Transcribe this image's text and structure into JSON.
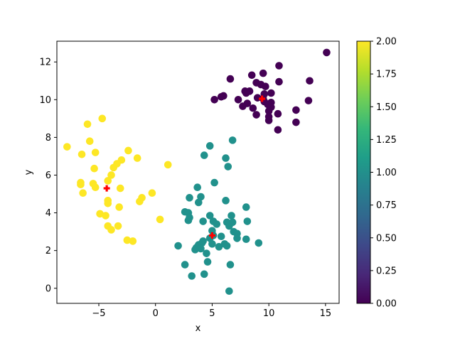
{
  "chart_data": {
    "type": "scatter",
    "xlabel": "x",
    "ylabel": "y",
    "xlim": [
      -8.7,
      16.2
    ],
    "ylim": [
      -0.8,
      13.1
    ],
    "xticks": [
      -5,
      0,
      5,
      10,
      15
    ],
    "yticks": [
      0,
      2,
      4,
      6,
      8,
      10,
      12
    ],
    "colorbar": {
      "colormap": "viridis",
      "range": [
        0,
        2
      ],
      "ticks": [
        "0.00",
        "0.25",
        "0.50",
        "0.75",
        "1.00",
        "1.25",
        "1.50",
        "1.75",
        "2.00"
      ],
      "stops": [
        "#440154",
        "#482878",
        "#3e4989",
        "#31688e",
        "#26828e",
        "#1f9e89",
        "#35b779",
        "#6ece58",
        "#b5de2b",
        "#fde725"
      ]
    },
    "cluster_colors": {
      "0": "#440154",
      "1": "#21918c",
      "2": "#fde725"
    },
    "centroid_color": "#ff0000",
    "points": [
      {
        "x": 15.1,
        "y": 12.5,
        "c": 0
      },
      {
        "x": 10.9,
        "y": 11.8,
        "c": 0
      },
      {
        "x": 8.5,
        "y": 11.3,
        "c": 0
      },
      {
        "x": 9.5,
        "y": 11.4,
        "c": 0
      },
      {
        "x": 6.6,
        "y": 11.1,
        "c": 0
      },
      {
        "x": 13.6,
        "y": 11.0,
        "c": 0
      },
      {
        "x": 8.9,
        "y": 10.9,
        "c": 0
      },
      {
        "x": 10.9,
        "y": 10.95,
        "c": 0
      },
      {
        "x": 9.3,
        "y": 10.8,
        "c": 0
      },
      {
        "x": 9.7,
        "y": 10.7,
        "c": 0
      },
      {
        "x": 7.9,
        "y": 10.45,
        "c": 0
      },
      {
        "x": 8.3,
        "y": 10.45,
        "c": 0
      },
      {
        "x": 8.0,
        "y": 10.35,
        "c": 0
      },
      {
        "x": 10.2,
        "y": 10.35,
        "c": 0
      },
      {
        "x": 9.6,
        "y": 10.3,
        "c": 0
      },
      {
        "x": 6.0,
        "y": 10.2,
        "c": 0
      },
      {
        "x": 5.8,
        "y": 10.15,
        "c": 0
      },
      {
        "x": 9.0,
        "y": 10.1,
        "c": 0
      },
      {
        "x": 9.5,
        "y": 10.05,
        "c": 0
      },
      {
        "x": 5.2,
        "y": 10.0,
        "c": 0
      },
      {
        "x": 7.3,
        "y": 10.0,
        "c": 0
      },
      {
        "x": 13.5,
        "y": 9.95,
        "c": 0
      },
      {
        "x": 9.6,
        "y": 9.9,
        "c": 0
      },
      {
        "x": 10.2,
        "y": 9.85,
        "c": 0
      },
      {
        "x": 8.1,
        "y": 9.8,
        "c": 0
      },
      {
        "x": 9.9,
        "y": 9.75,
        "c": 0
      },
      {
        "x": 7.7,
        "y": 9.65,
        "c": 0
      },
      {
        "x": 8.6,
        "y": 9.55,
        "c": 0
      },
      {
        "x": 10.2,
        "y": 9.6,
        "c": 0
      },
      {
        "x": 12.4,
        "y": 9.45,
        "c": 0
      },
      {
        "x": 10.0,
        "y": 9.4,
        "c": 0
      },
      {
        "x": 8.9,
        "y": 9.2,
        "c": 0
      },
      {
        "x": 10.8,
        "y": 9.25,
        "c": 0
      },
      {
        "x": 10.0,
        "y": 9.1,
        "c": 0
      },
      {
        "x": 10.0,
        "y": 8.9,
        "c": 0
      },
      {
        "x": 12.4,
        "y": 8.8,
        "c": 0
      },
      {
        "x": 10.8,
        "y": 8.4,
        "c": 0
      },
      {
        "x": 6.8,
        "y": 7.85,
        "c": 1
      },
      {
        "x": 4.8,
        "y": 7.55,
        "c": 1
      },
      {
        "x": 4.3,
        "y": 7.05,
        "c": 1
      },
      {
        "x": 6.2,
        "y": 6.9,
        "c": 1
      },
      {
        "x": 6.4,
        "y": 6.45,
        "c": 1
      },
      {
        "x": 5.2,
        "y": 5.6,
        "c": 1
      },
      {
        "x": 3.7,
        "y": 5.35,
        "c": 1
      },
      {
        "x": 3.0,
        "y": 4.8,
        "c": 1
      },
      {
        "x": 4.0,
        "y": 4.85,
        "c": 1
      },
      {
        "x": 6.2,
        "y": 4.65,
        "c": 1
      },
      {
        "x": 3.8,
        "y": 4.55,
        "c": 1
      },
      {
        "x": 8.0,
        "y": 4.3,
        "c": 1
      },
      {
        "x": 2.6,
        "y": 4.05,
        "c": 1
      },
      {
        "x": 2.9,
        "y": 4.0,
        "c": 1
      },
      {
        "x": 4.8,
        "y": 3.85,
        "c": 1
      },
      {
        "x": 6.7,
        "y": 3.85,
        "c": 1
      },
      {
        "x": 3.0,
        "y": 3.75,
        "c": 1
      },
      {
        "x": 2.9,
        "y": 3.6,
        "c": 1
      },
      {
        "x": 4.2,
        "y": 3.55,
        "c": 1
      },
      {
        "x": 5.1,
        "y": 3.55,
        "c": 1
      },
      {
        "x": 8.1,
        "y": 3.55,
        "c": 1
      },
      {
        "x": 6.3,
        "y": 3.5,
        "c": 1
      },
      {
        "x": 6.8,
        "y": 3.5,
        "c": 1
      },
      {
        "x": 5.4,
        "y": 3.4,
        "c": 1
      },
      {
        "x": 6.5,
        "y": 3.3,
        "c": 1
      },
      {
        "x": 5.0,
        "y": 3.05,
        "c": 1
      },
      {
        "x": 6.9,
        "y": 3.0,
        "c": 1
      },
      {
        "x": 7.2,
        "y": 2.9,
        "c": 1
      },
      {
        "x": 5.1,
        "y": 2.8,
        "c": 1
      },
      {
        "x": 5.8,
        "y": 2.75,
        "c": 1
      },
      {
        "x": 4.8,
        "y": 2.65,
        "c": 1
      },
      {
        "x": 7.2,
        "y": 2.65,
        "c": 1
      },
      {
        "x": 8.0,
        "y": 2.6,
        "c": 1
      },
      {
        "x": 4.2,
        "y": 2.5,
        "c": 1
      },
      {
        "x": 9.1,
        "y": 2.4,
        "c": 1
      },
      {
        "x": 4.1,
        "y": 2.4,
        "c": 1
      },
      {
        "x": 5.0,
        "y": 2.35,
        "c": 1
      },
      {
        "x": 6.1,
        "y": 2.35,
        "c": 1
      },
      {
        "x": 3.8,
        "y": 2.3,
        "c": 1
      },
      {
        "x": 6.3,
        "y": 2.25,
        "c": 1
      },
      {
        "x": 2.0,
        "y": 2.25,
        "c": 1
      },
      {
        "x": 5.6,
        "y": 2.2,
        "c": 1
      },
      {
        "x": 3.6,
        "y": 2.15,
        "c": 1
      },
      {
        "x": 4.0,
        "y": 2.1,
        "c": 1
      },
      {
        "x": 3.5,
        "y": 2.05,
        "c": 1
      },
      {
        "x": 4.5,
        "y": 1.85,
        "c": 1
      },
      {
        "x": 4.6,
        "y": 1.4,
        "c": 1
      },
      {
        "x": 2.6,
        "y": 1.25,
        "c": 1
      },
      {
        "x": 6.6,
        "y": 1.25,
        "c": 1
      },
      {
        "x": 4.3,
        "y": 0.75,
        "c": 1
      },
      {
        "x": 3.2,
        "y": 0.65,
        "c": 1
      },
      {
        "x": 6.5,
        "y": -0.15,
        "c": 1
      },
      {
        "x": -4.7,
        "y": 9.0,
        "c": 2
      },
      {
        "x": -6.0,
        "y": 8.7,
        "c": 2
      },
      {
        "x": -5.8,
        "y": 7.8,
        "c": 2
      },
      {
        "x": -7.8,
        "y": 7.5,
        "c": 2
      },
      {
        "x": -2.4,
        "y": 7.3,
        "c": 2
      },
      {
        "x": -5.3,
        "y": 7.2,
        "c": 2
      },
      {
        "x": -6.5,
        "y": 7.1,
        "c": 2
      },
      {
        "x": -1.6,
        "y": 6.9,
        "c": 2
      },
      {
        "x": -3.0,
        "y": 6.8,
        "c": 2
      },
      {
        "x": -3.4,
        "y": 6.6,
        "c": 2
      },
      {
        "x": 1.1,
        "y": 6.55,
        "c": 2
      },
      {
        "x": -3.7,
        "y": 6.4,
        "c": 2
      },
      {
        "x": -5.4,
        "y": 6.35,
        "c": 2
      },
      {
        "x": -3.9,
        "y": 6.0,
        "c": 2
      },
      {
        "x": -4.2,
        "y": 5.7,
        "c": 2
      },
      {
        "x": -6.6,
        "y": 5.6,
        "c": 2
      },
      {
        "x": -6.6,
        "y": 5.5,
        "c": 2
      },
      {
        "x": -5.5,
        "y": 5.55,
        "c": 2
      },
      {
        "x": -5.3,
        "y": 5.35,
        "c": 2
      },
      {
        "x": -3.1,
        "y": 5.3,
        "c": 2
      },
      {
        "x": -6.4,
        "y": 5.05,
        "c": 2
      },
      {
        "x": -0.3,
        "y": 5.05,
        "c": 2
      },
      {
        "x": -1.2,
        "y": 4.8,
        "c": 2
      },
      {
        "x": -4.2,
        "y": 4.65,
        "c": 2
      },
      {
        "x": -1.4,
        "y": 4.6,
        "c": 2
      },
      {
        "x": -4.2,
        "y": 4.5,
        "c": 2
      },
      {
        "x": -3.2,
        "y": 4.3,
        "c": 2
      },
      {
        "x": -4.9,
        "y": 3.95,
        "c": 2
      },
      {
        "x": -4.4,
        "y": 3.85,
        "c": 2
      },
      {
        "x": 0.4,
        "y": 3.65,
        "c": 2
      },
      {
        "x": -4.2,
        "y": 3.3,
        "c": 2
      },
      {
        "x": -3.3,
        "y": 3.3,
        "c": 2
      },
      {
        "x": -3.9,
        "y": 3.1,
        "c": 2
      },
      {
        "x": -2.5,
        "y": 2.55,
        "c": 2
      },
      {
        "x": -2.0,
        "y": 2.5,
        "c": 2
      }
    ],
    "centroids": [
      {
        "x": 9.4,
        "y": 10.05
      },
      {
        "x": 5.0,
        "y": 2.8
      },
      {
        "x": -4.3,
        "y": 5.3
      }
    ]
  }
}
